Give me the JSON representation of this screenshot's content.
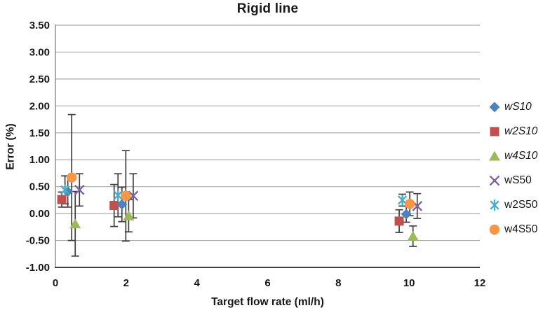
{
  "figure": {
    "title": "Rigid line"
  },
  "chart_data": {
    "type": "scatter",
    "title": "Rigid line",
    "xlabel": "Target flow rate (ml/h)",
    "ylabel": "Error (%)",
    "xlim": [
      0,
      12
    ],
    "ylim": [
      -1.0,
      3.5
    ],
    "x_ticks": [
      0,
      2,
      4,
      6,
      8,
      10,
      12
    ],
    "y_ticks": [
      3.5,
      3.0,
      2.5,
      2.0,
      1.5,
      1.0,
      0.5,
      0.0,
      -0.5,
      -1.0
    ],
    "y_tick_decimals": 2,
    "grid": "horizontal",
    "legend_position": "right",
    "error_bars": true,
    "gridline_color": "#ababab",
    "y_axis_color": "#808080",
    "x_axis_color": "#404040",
    "error_bar_color": "#3f3f3f",
    "series": [
      {
        "name": "wS10",
        "marker": "diamond",
        "color": "#4F81BD",
        "italic": true,
        "points": [
          {
            "x": 0.35,
            "y": 0.41,
            "err": 0.29
          },
          {
            "x": 1.88,
            "y": 0.17,
            "err": 0.32
          },
          {
            "x": 9.92,
            "y": -0.01,
            "err": 0.15
          }
        ]
      },
      {
        "name": "w2S10",
        "marker": "square",
        "color": "#C0504D",
        "italic": true,
        "points": [
          {
            "x": 0.18,
            "y": 0.26,
            "err": 0.14
          },
          {
            "x": 1.66,
            "y": 0.15,
            "err": 0.39
          },
          {
            "x": 9.72,
            "y": -0.14,
            "err": 0.21
          }
        ]
      },
      {
        "name": "w4S10",
        "marker": "triangle",
        "color": "#9BBB59",
        "italic": true,
        "points": [
          {
            "x": 0.56,
            "y": -0.19,
            "err": 0.6
          },
          {
            "x": 2.07,
            "y": -0.04,
            "err": 0.3
          },
          {
            "x": 10.11,
            "y": -0.42,
            "err": 0.19
          }
        ]
      },
      {
        "name": "wS50",
        "marker": "x",
        "color": "#8064A2",
        "italic": false,
        "points": [
          {
            "x": 0.68,
            "y": 0.44,
            "err": 0.3
          },
          {
            "x": 2.2,
            "y": 0.33,
            "err": 0.41
          },
          {
            "x": 10.23,
            "y": 0.14,
            "err": 0.23
          }
        ]
      },
      {
        "name": "w2S50",
        "marker": "asterisk",
        "color": "#4BACC6",
        "italic": false,
        "points": [
          {
            "x": 0.27,
            "y": 0.44,
            "err": 0.26
          },
          {
            "x": 1.77,
            "y": 0.34,
            "err": 0.4
          },
          {
            "x": 9.81,
            "y": 0.25,
            "err": 0.11
          }
        ]
      },
      {
        "name": "w4S50",
        "marker": "circle",
        "color": "#F79646",
        "italic": false,
        "points": [
          {
            "x": 0.46,
            "y": 0.67,
            "err": 1.17
          },
          {
            "x": 1.99,
            "y": 0.33,
            "err": 0.84
          },
          {
            "x": 10.02,
            "y": 0.18,
            "err": 0.22
          }
        ]
      }
    ]
  }
}
